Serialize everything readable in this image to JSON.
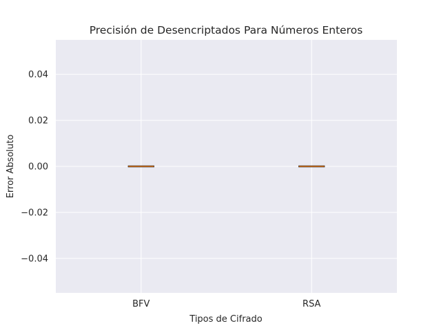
{
  "chart_data": {
    "type": "box",
    "title": "Precisión de Desencriptados Para Números Enteros",
    "xlabel": "Tipos de Cifrado",
    "ylabel": "Error Absoluto",
    "categories": [
      "BFV",
      "RSA"
    ],
    "boxes": [
      {
        "name": "BFV",
        "min": 0.0,
        "q1": 0.0,
        "median": 0.0,
        "q3": 0.0,
        "max": 0.0
      },
      {
        "name": "RSA",
        "min": 0.0,
        "q1": 0.0,
        "median": 0.0,
        "q3": 0.0,
        "max": 0.0
      }
    ],
    "ylim": [
      -0.055,
      0.055
    ],
    "yticks": [
      -0.04,
      -0.02,
      0.0,
      0.02,
      0.04
    ],
    "ytick_labels": [
      "−0.04",
      "−0.02",
      "0.00",
      "0.02",
      "0.04"
    ],
    "grid": true,
    "colors": {
      "plot_background": "#eaeaf2",
      "grid": "#ffffff",
      "box_edge": "#000000",
      "median": "#e67e22",
      "text": "#262626"
    }
  }
}
